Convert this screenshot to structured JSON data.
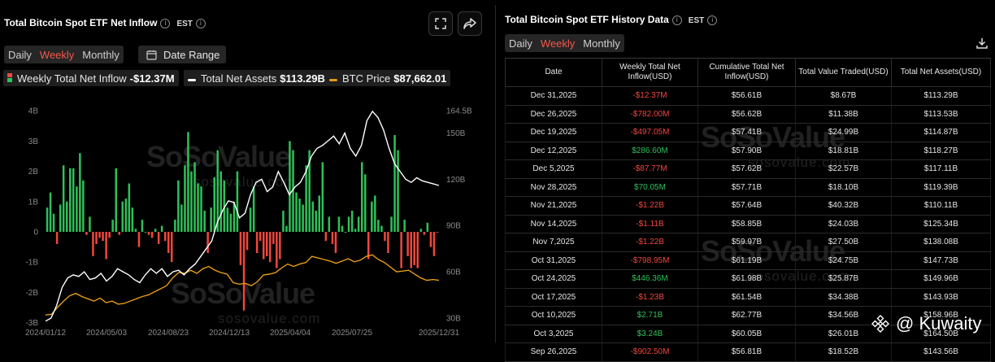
{
  "left": {
    "title": "Total Bitcoin Spot ETF Net Inflow",
    "timezone": "EST",
    "tabs": [
      "Daily",
      "Weekly",
      "Monthly"
    ],
    "active_tab": "Weekly",
    "date_range_label": "Date Range",
    "legend": [
      {
        "label": "Weekly Total Net Inflow",
        "value": "-$12.37M"
      },
      {
        "label": "Total Net Assets",
        "value": "$113.29B"
      },
      {
        "label": "BTC Price",
        "value": "$87,662.01"
      }
    ],
    "watermark": {
      "name": "SoSoValue",
      "url": "sosovalue.com"
    }
  },
  "right": {
    "title": "Total Bitcoin Spot ETF History Data",
    "timezone": "EST",
    "tabs": [
      "Daily",
      "Weekly",
      "Monthly"
    ],
    "active_tab": "Weekly",
    "download_icon": "download-icon",
    "columns": [
      "Date",
      "Weekly Total Net Inflow(USD)",
      "Cumulative Total Net Inflow(USD)",
      "Total Value Traded(USD)",
      "Total Net Assets(USD)"
    ],
    "rows": [
      [
        "Dec 31,2025",
        "-$12.37M",
        "$56.61B",
        "$8.67B",
        "$113.29B"
      ],
      [
        "Dec 26,2025",
        "-$782.00M",
        "$56.62B",
        "$11.38B",
        "$113.53B"
      ],
      [
        "Dec 19,2025",
        "-$497.05M",
        "$57.41B",
        "$24.99B",
        "$114.87B"
      ],
      [
        "Dec 12,2025",
        "$286.60M",
        "$57.90B",
        "$18.81B",
        "$118.27B"
      ],
      [
        "Dec 5,2025",
        "-$87.77M",
        "$57.62B",
        "$22.57B",
        "$117.11B"
      ],
      [
        "Nov 28,2025",
        "$70.05M",
        "$57.71B",
        "$18.10B",
        "$119.39B"
      ],
      [
        "Nov 21,2025",
        "-$1.22B",
        "$57.64B",
        "$40.32B",
        "$110.11B"
      ],
      [
        "Nov 14,2025",
        "-$1.11B",
        "$58.85B",
        "$24.03B",
        "$125.34B"
      ],
      [
        "Nov 7,2025",
        "-$1.22B",
        "$59.97B",
        "$27.50B",
        "$138.08B"
      ],
      [
        "Oct 31,2025",
        "-$798.95M",
        "$61.19B",
        "$24.75B",
        "$147.73B"
      ],
      [
        "Oct 24,2025",
        "$446.36M",
        "$61.98B",
        "$25.87B",
        "$149.96B"
      ],
      [
        "Oct 17,2025",
        "-$1.23B",
        "$61.54B",
        "$34.38B",
        "$143.93B"
      ],
      [
        "Oct 10,2025",
        "$2.71B",
        "$62.77B",
        "$34.56B",
        "$158.96B"
      ],
      [
        "Oct 3,2025",
        "$3.24B",
        "$60.05B",
        "$26.01B",
        "$164.50B"
      ],
      [
        "Sep 26,2025",
        "-$902.50M",
        "$56.81B",
        "$18.52B",
        "$143.56B"
      ]
    ],
    "watermark": {
      "name": "SoSoValue",
      "url": "sosovalue.com"
    }
  },
  "overlay_label": "@ Kuwaity",
  "colors": {
    "positive": "#2ec05a",
    "negative": "#f0473d",
    "assets_line": "#ffffff",
    "btc_line": "#e39b14",
    "accent": "#f5574a"
  },
  "chart_data": {
    "type": "bar",
    "x_tick_labels": [
      "2024/01/12",
      "2024/05/03",
      "2024/08/23",
      "2024/12/13",
      "2025/04/04",
      "2025/07/25",
      "2025/12/31"
    ],
    "left_axis_ticks": [
      "4B",
      "3B",
      "2B",
      "1B",
      "0",
      "-1B",
      "-2B",
      "-3B"
    ],
    "right_axis_ticks": [
      "164.5B",
      "150B",
      "120B",
      "90B",
      "60B",
      "30B"
    ],
    "ylim_left": [
      -3,
      4
    ],
    "ylim_right": [
      30,
      164.5
    ],
    "grid": false,
    "series": [
      {
        "name": "Weekly Total Net Inflow",
        "axis": "left",
        "unit": "B",
        "values": [
          0.8,
          1.3,
          0.6,
          -0.4,
          0.9,
          2.2,
          1.0,
          2.1,
          2.1,
          1.5,
          2.6,
          1.7,
          -0.1,
          0.5,
          -0.8,
          -0.4,
          -0.2,
          -0.3,
          -0.9,
          -0.2,
          0.4,
          2.1,
          -0.1,
          1.0,
          1.1,
          1.6,
          0.8,
          0.1,
          -0.5,
          0.4,
          0.0,
          -0.1,
          -0.2,
          0.1,
          -0.4,
          0.2,
          -0.3,
          -0.7,
          -1.0,
          0.4,
          1.7,
          0.9,
          2.2,
          3.3,
          2.0,
          2.3,
          1.6,
          1.5,
          0.7,
          -0.7,
          0.8,
          1.8,
          2.7,
          2.0,
          1.7,
          0.8,
          0.6,
          1.0,
          2.0,
          -1.1,
          -2.6,
          -0.6,
          0.8,
          1.5,
          -0.7,
          -0.3,
          -0.9,
          -0.8,
          -1.0,
          -0.4,
          -1.2,
          -0.9,
          0.7,
          0.2,
          3.0,
          2.7,
          1.3,
          1.1,
          0.9,
          2.2,
          2.7,
          1.0,
          0.7,
          1.2,
          2.3,
          -0.3,
          0.5,
          -0.4,
          -0.7,
          0.5,
          0.2,
          0.0,
          0.5,
          0.7,
          0.1,
          0.5,
          2.3,
          1.9,
          -0.9,
          1.0,
          1.2,
          0.4,
          0.2,
          -0.3,
          -0.7,
          0.5,
          3.2,
          2.7,
          -1.2,
          0.4,
          -0.8,
          -1.2,
          -1.1,
          -1.2,
          0.1,
          -0.1,
          0.3,
          -0.5,
          -0.8,
          -0.01
        ]
      },
      {
        "name": "Total Net Assets",
        "axis": "right",
        "unit": "B",
        "values": [
          28,
          30,
          38,
          50,
          56,
          58,
          57,
          60,
          55,
          56,
          59,
          54,
          57,
          62,
          60,
          58,
          55,
          53,
          58,
          62,
          59,
          62,
          57,
          60,
          61,
          58,
          62,
          65,
          70,
          75,
          80,
          92,
          100,
          106,
          105,
          95,
          98,
          110,
          118,
          120,
          112,
          115,
          125,
          118,
          110,
          115,
          118,
          125,
          135,
          140,
          142,
          145,
          148,
          143,
          150,
          140,
          135,
          142,
          158,
          164,
          160,
          152,
          140,
          130,
          125,
          120,
          118,
          121,
          119,
          118,
          117,
          116
        ]
      },
      {
        "name": "BTC Price",
        "axis": "right",
        "unit": "$K",
        "values": [
          42,
          43,
          52,
          60,
          67,
          70,
          66,
          63,
          60,
          64,
          58,
          60,
          56,
          57,
          60,
          63,
          66,
          68,
          72,
          76,
          80,
          90,
          97,
          96,
          100,
          96,
          102,
          105,
          100,
          97,
          95,
          84,
          82,
          83,
          80,
          85,
          94,
          95,
          97,
          103,
          108,
          105,
          108,
          110,
          118,
          116,
          114,
          112,
          109,
          112,
          115,
          111,
          113,
          118,
          120,
          114,
          110,
          104,
          98,
          99,
          100,
          95,
          90,
          87,
          88,
          87
        ]
      }
    ],
    "series_note": "Inflow values in $B per week; line series values in their own axis units, read approximately from the plotted lines."
  }
}
